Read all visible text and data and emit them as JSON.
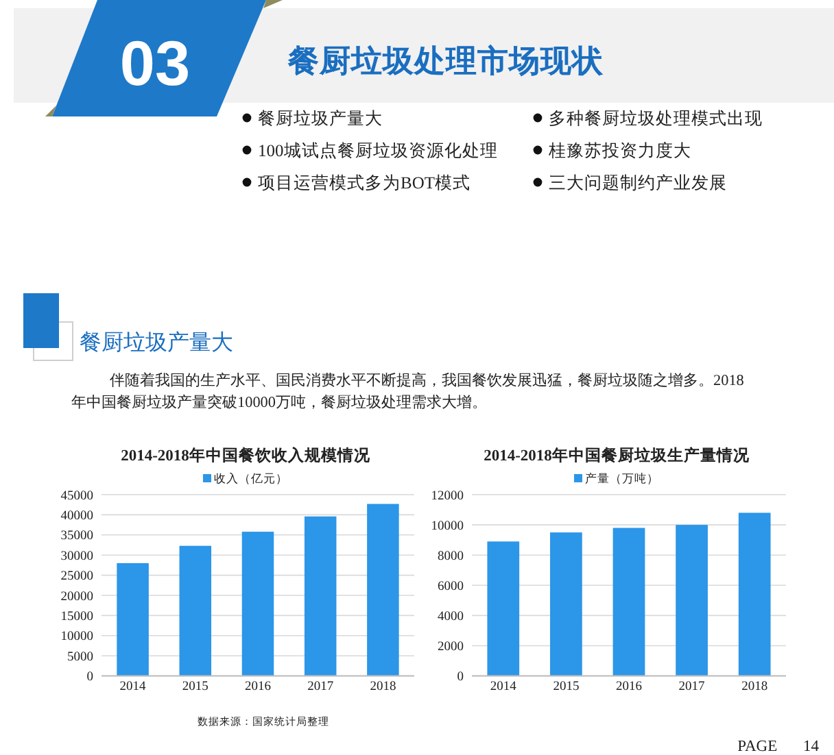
{
  "chart_data": [
    {
      "type": "other",
      "title": "餐厨垃圾处理市场现状",
      "annotations": [
        "03",
        "餐厨垃圾产量大",
        "100城试点餐厨垃圾资源化处理",
        "项目运营模式多为BOT模式",
        "多种餐厨垃圾处理模式出现",
        "桂豫苏投资力度大",
        "三大问题制约产业发展"
      ]
    },
    {
      "type": "other",
      "title": "餐厨垃圾产量大",
      "annotations": [
        "伴随着我国的生产水平、国民消费水平不断提高，我国餐饮发展迅猛，餐厨垃圾随之增多。2018年中国餐厨垃圾产量突破10000万吨，餐厨垃圾处理需求大增。",
        "PAGE 14"
      ]
    },
    {
      "type": "bar",
      "title": "2014-2018年中国餐饮收入规模情况",
      "categories": [
        "2014",
        "2015",
        "2016",
        "2017",
        "2018"
      ],
      "series": [
        {
          "name": "收入（亿元）",
          "color": "#2c96e8",
          "values": [
            28000,
            32300,
            35800,
            39600,
            42700
          ]
        }
      ],
      "ylim": [
        0,
        45000
      ],
      "yticks": [
        0,
        5000,
        10000,
        15000,
        20000,
        25000,
        30000,
        35000,
        40000,
        45000
      ],
      "grid": "y",
      "legend": "top",
      "annotations": [
        "数据来源：国家统计局整理"
      ]
    },
    {
      "type": "bar",
      "title": "2014-2018年中国餐厨垃圾生产量情况",
      "categories": [
        "2014",
        "2015",
        "2016",
        "2017",
        "2018"
      ],
      "series": [
        {
          "name": "产量（万吨）",
          "color": "#2c96e8",
          "values": [
            8900,
            9500,
            9800,
            10000,
            10800
          ]
        }
      ],
      "ylim": [
        0,
        12000
      ],
      "yticks": [
        0,
        2000,
        4000,
        6000,
        8000,
        10000,
        12000
      ],
      "grid": "y",
      "legend": "top"
    }
  ]
}
